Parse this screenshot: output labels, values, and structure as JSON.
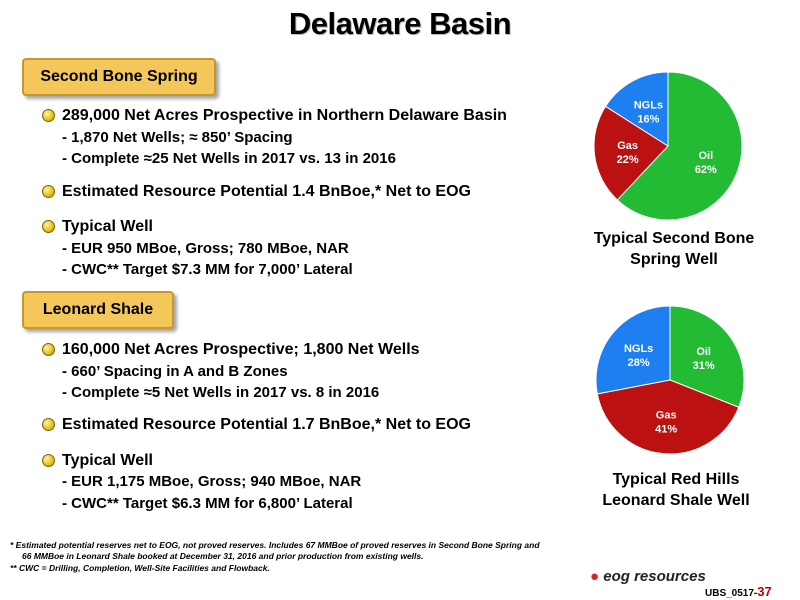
{
  "title": "Delaware Basin",
  "sections": [
    {
      "heading": "Second Bone Spring",
      "bullets": [
        {
          "text": "289,000 Net Acres Prospective in Northern Delaware Basin",
          "subs": [
            "- 1,870 Net Wells; ≈ 850’ Spacing",
            "- Complete ≈25 Net Wells in 2017 vs. 13 in 2016"
          ]
        },
        {
          "text": "Estimated Resource Potential 1.4 BnBoe,* Net to EOG",
          "subs": []
        },
        {
          "text": "Typical Well",
          "subs": [
            "- EUR 950 MBoe, Gross; 780 MBoe, NAR",
            "- CWC** Target $7.3 MM for 7,000’ Lateral"
          ]
        }
      ]
    },
    {
      "heading": "Leonard Shale",
      "bullets": [
        {
          "text": "160,000 Net Acres Prospective; 1,800 Net Wells",
          "subs": [
            "- 660’ Spacing in A and B Zones",
            "- Complete ≈5 Net Wells in 2017 vs. 8 in 2016"
          ]
        },
        {
          "text": "Estimated Resource Potential 1.7 BnBoe,* Net to EOG",
          "subs": []
        },
        {
          "text": "Typical Well",
          "subs": [
            "- EUR 1,175 MBoe, Gross; 940 MBoe, NAR",
            "- CWC** Target $6.3 MM for 6,800’ Lateral"
          ]
        }
      ]
    }
  ],
  "chart_data": [
    {
      "type": "pie",
      "title": "Typical Second Bone Spring Well",
      "title_lines": [
        "Typical Second Bone",
        "Spring Well"
      ],
      "slices": [
        {
          "label": "Oil",
          "value": 62,
          "value_label": "62%",
          "color": "#22bb33"
        },
        {
          "label": "Gas",
          "value": 22,
          "value_label": "22%",
          "color": "#bb1111"
        },
        {
          "label": "NGLs",
          "value": 16,
          "value_label": "16%",
          "color": "#1e7ff0"
        }
      ]
    },
    {
      "type": "pie",
      "title": "Typical Red Hills Leonard Shale Well",
      "title_lines": [
        "Typical Red Hills",
        "Leonard Shale Well"
      ],
      "slices": [
        {
          "label": "Oil",
          "value": 31,
          "value_label": "31%",
          "color": "#22bb33"
        },
        {
          "label": "Gas",
          "value": 41,
          "value_label": "41%",
          "color": "#bb1111"
        },
        {
          "label": "NGLs",
          "value": 28,
          "value_label": "28%",
          "color": "#1e7ff0"
        }
      ]
    }
  ],
  "footnotes": [
    "* Estimated potential reserves net to EOG, not proved reserves. Includes 67 MMBoe of proved reserves in Second Bone Spring and",
    "66 MMBoe in Leonard Shale booked at December 31, 2016 and prior production from existing wells.",
    "** CWC = Drilling, Completion, Well-Site Facilities and Flowback."
  ],
  "logo_text": "eog resources",
  "page_ref": {
    "code": "UBS_0517-",
    "number": "37"
  }
}
